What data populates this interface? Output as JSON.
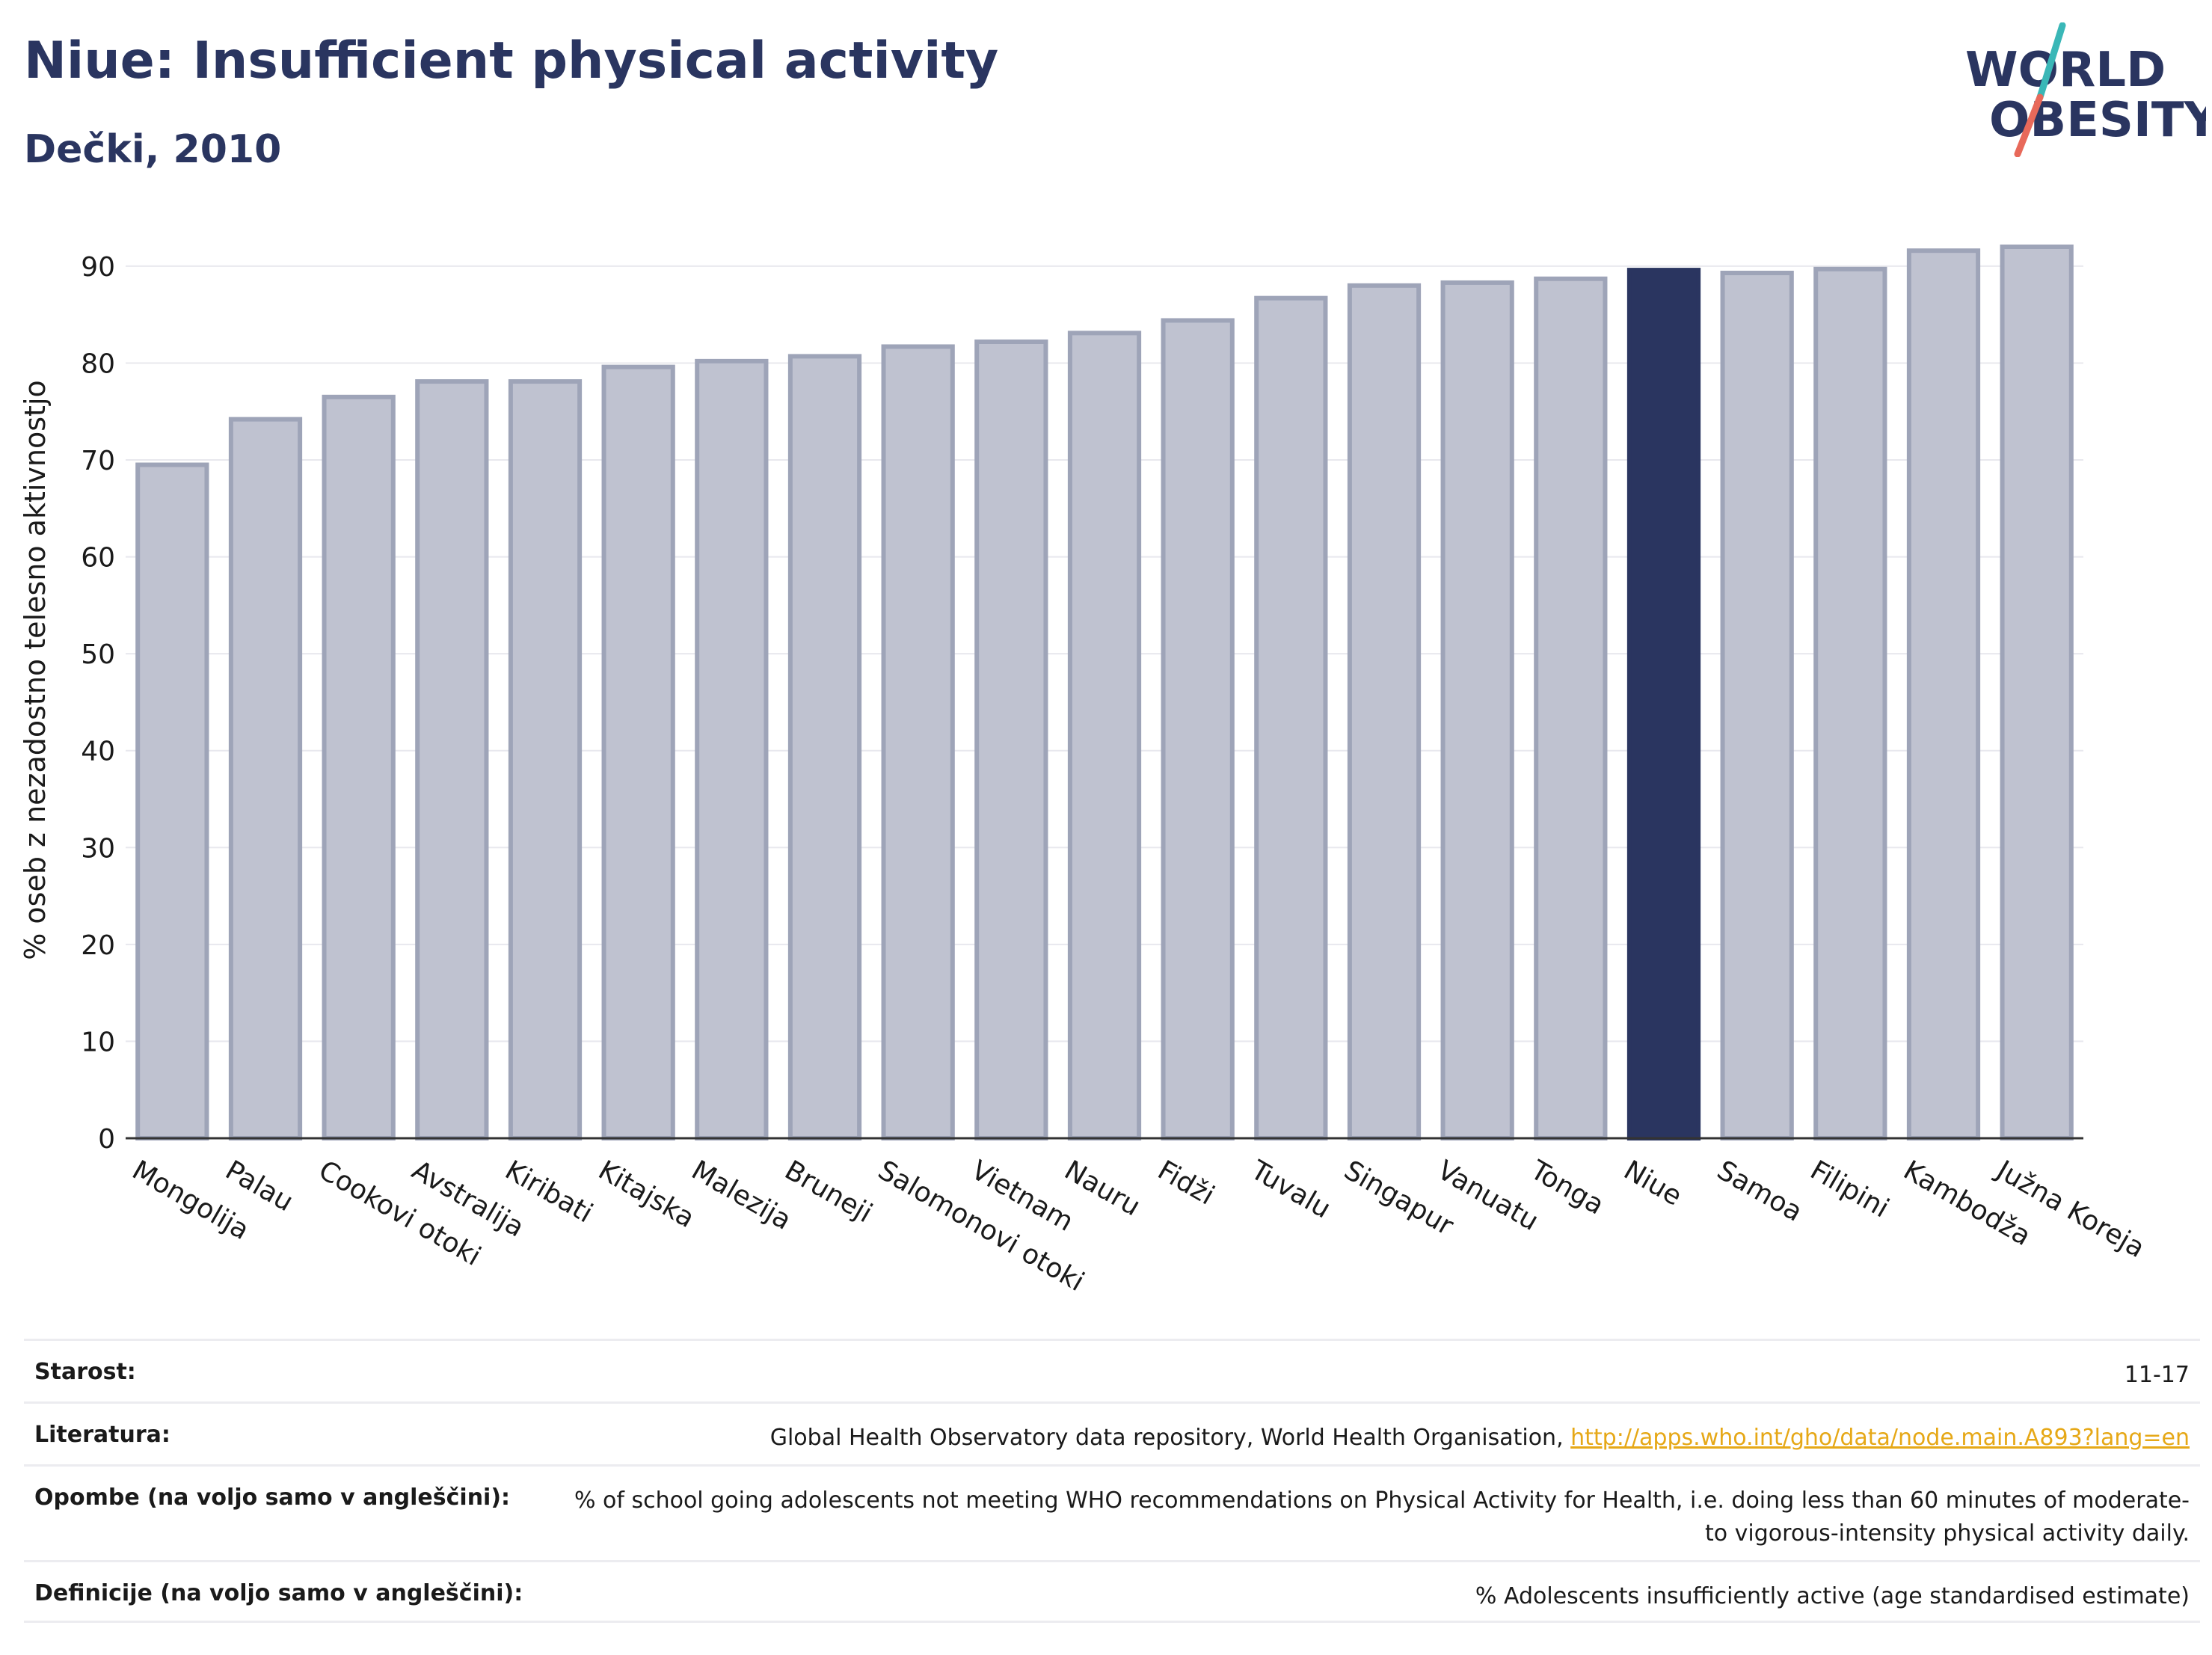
{
  "title": "Niue: Insufficient physical activity",
  "subtitle": "Dečki, 2010",
  "logo": {
    "line1": "WORLD",
    "line2": "OBESITY",
    "colors": {
      "text": "#2a3560",
      "slash_teal": "#3ab7b7",
      "slash_coral": "#e8695a"
    }
  },
  "colors": {
    "bar": "#bfc2d0",
    "bar_stroke": "#9ea4b8",
    "highlight": "#2a3560",
    "grid": "#e8e8ee",
    "axis": "#333333"
  },
  "chart_data": {
    "type": "bar",
    "title": "Niue: Insufficient physical activity",
    "subtitle": "Dečki, 2010",
    "ylabel": "% oseb z nezadostno telesno aktivnostjo",
    "xlabel": "",
    "ylim": [
      0,
      92
    ],
    "yticks": [
      0,
      10,
      20,
      30,
      40,
      50,
      60,
      70,
      80,
      90
    ],
    "grid": true,
    "categories": [
      "Mongolija",
      "Palau",
      "Cookovi otoki",
      "Avstralija",
      "Kiribati",
      "Kitajska",
      "Malezija",
      "Bruneji",
      "Salomonovi otoki",
      "Vietnam",
      "Nauru",
      "Fidži",
      "Tuvalu",
      "Singapur",
      "Vanuatu",
      "Tonga",
      "Niue",
      "Samoa",
      "Filipini",
      "Kambodža",
      "Južna Koreja"
    ],
    "values": [
      69.5,
      74.2,
      76.5,
      78.1,
      78.1,
      79.6,
      80.2,
      80.7,
      81.7,
      82.2,
      83.1,
      84.4,
      86.7,
      88.0,
      88.3,
      88.7,
      89.6,
      89.3,
      89.7,
      91.6,
      92.0
    ],
    "highlight": "Niue"
  },
  "meta": [
    {
      "label": "Starost:",
      "value": "11-17"
    },
    {
      "label": "Literatura:",
      "value": "Global Health Observatory data repository, World Health Organisation, ",
      "link": "http://apps.who.int/gho/data/node.main.A893?lang=en"
    },
    {
      "label": "Opombe (na voljo samo v angleščini):",
      "value": "% of school going adolescents not meeting WHO recommendations on Physical Activity for Health, i.e. doing less than 60 minutes of moderate- to vigorous-intensity physical activity daily."
    },
    {
      "label": "Definicije (na voljo samo v angleščini):",
      "value": "% Adolescents insufficiently active (age standardised estimate)"
    }
  ]
}
